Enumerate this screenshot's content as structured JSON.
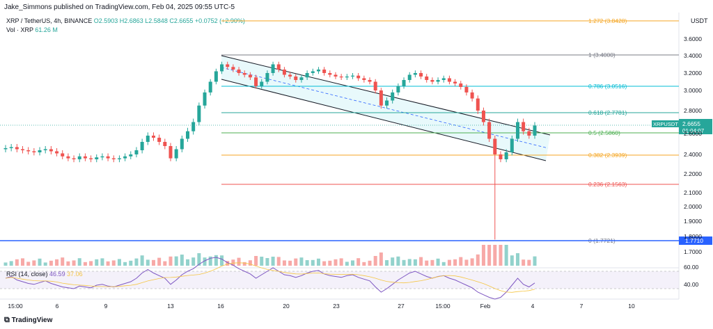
{
  "header": {
    "published": "Jake_Simmons published on TradingView.com, Feb 04, 2025 09:55 UTC-5",
    "symbol": "XRP / TetherUS, 4h, BINANCE",
    "ohlc": "O2.5903 H2.6863 L2.5848 C2.6655 +0.0752 (+2.90%)",
    "volume_label": "Vol · XRP",
    "volume_value": "61.26 M",
    "currency": "USDT"
  },
  "price_tag": {
    "symbol": "XRPUSDT",
    "price": "2.6655",
    "countdown": "01:04:07"
  },
  "support_tag": "1.7710",
  "rsi": {
    "label": "RSI (14, close)",
    "value": "46.59",
    "ma": "37.06",
    "upper": "60.00",
    "lower": "40.00"
  },
  "branding": {
    "footer": "TradingView"
  },
  "colors": {
    "up": "#26a69a",
    "down": "#ef5350",
    "channel": "#e0f7fa",
    "support": "#2962ff",
    "rsi": "#7e57c2"
  },
  "chart_data": {
    "type": "candlestick",
    "interval": "4h",
    "y_ticks": [
      "3.6000",
      "3.4000",
      "3.2000",
      "3.0000",
      "2.8000",
      "2.6000",
      "2.4000",
      "2.2000",
      "2.1000",
      "2.0000",
      "1.9000",
      "1.8000",
      "1.7000"
    ],
    "x_ticks": [
      "15:00",
      "6",
      "9",
      "13",
      "16",
      "20",
      "23",
      "27",
      "15:00",
      "Feb",
      "4",
      "7",
      "10"
    ],
    "fib_levels": [
      {
        "label": "1.272 (3.8428)",
        "color": "#f5a623"
      },
      {
        "label": "1 (3.4000)",
        "color": "#787b86"
      },
      {
        "label": "0.786 (3.0516)",
        "color": "#00bcd4"
      },
      {
        "label": "0.618 (2.7781)",
        "color": "#26a69a"
      },
      {
        "label": "0.5 (2.5860)",
        "color": "#4caf50"
      },
      {
        "label": "0.382 (2.3939)",
        "color": "#f5a623"
      },
      {
        "label": "0.236 (2.1563)",
        "color": "#ef5350"
      },
      {
        "label": "0 (1.7721)",
        "color": "#787b86"
      }
    ],
    "close_series_approx": [
      2.46,
      2.47,
      2.45,
      2.44,
      2.43,
      2.42,
      2.44,
      2.45,
      2.43,
      2.41,
      2.38,
      2.36,
      2.35,
      2.38,
      2.36,
      2.35,
      2.37,
      2.38,
      2.36,
      2.35,
      2.36,
      2.38,
      2.4,
      2.44,
      2.52,
      2.58,
      2.56,
      2.52,
      2.48,
      2.36,
      2.45,
      2.55,
      2.62,
      2.7,
      2.85,
      2.98,
      3.1,
      3.22,
      3.3,
      3.27,
      3.24,
      3.2,
      3.18,
      3.15,
      3.05,
      3.1,
      3.2,
      3.3,
      3.24,
      3.18,
      3.16,
      3.12,
      3.15,
      3.2,
      3.22,
      3.24,
      3.2,
      3.18,
      3.16,
      3.15,
      3.16,
      3.17,
      3.14,
      3.12,
      3.1,
      3.0,
      2.85,
      2.9,
      2.98,
      3.05,
      3.12,
      3.18,
      3.2,
      3.16,
      3.12,
      3.1,
      3.12,
      3.14,
      3.1,
      3.08,
      3.04,
      2.98,
      2.92,
      2.8,
      2.7,
      2.55,
      2.4,
      2.35,
      2.42,
      2.55,
      2.7,
      2.62,
      2.58,
      2.67
    ],
    "rsi_series_approx": [
      52,
      54,
      50,
      48,
      46,
      45,
      47,
      49,
      46,
      44,
      42,
      41,
      40,
      43,
      42,
      41,
      44,
      45,
      43,
      42,
      44,
      46,
      48,
      52,
      58,
      62,
      58,
      55,
      52,
      45,
      50,
      56,
      60,
      63,
      68,
      72,
      75,
      76,
      74,
      70,
      67,
      63,
      60,
      57,
      52,
      56,
      60,
      64,
      60,
      56,
      55,
      53,
      55,
      58,
      60,
      61,
      57,
      55,
      54,
      53,
      55,
      56,
      53,
      51,
      49,
      42,
      36,
      40,
      45,
      50,
      54,
      58,
      60,
      57,
      54,
      52,
      54,
      55,
      52,
      50,
      47,
      44,
      41,
      36,
      33,
      30,
      28,
      30,
      36,
      44,
      52,
      45,
      42,
      46.59
    ]
  }
}
